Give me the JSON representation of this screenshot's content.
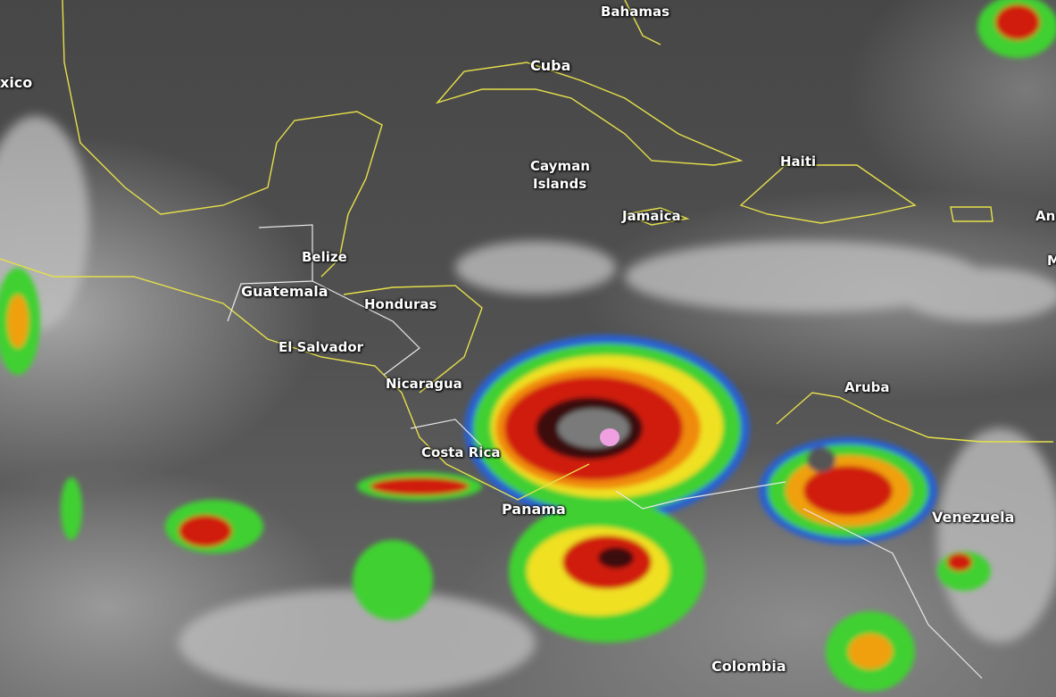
{
  "map": {
    "type": "infrared satellite imagery",
    "labels": {
      "mexico": "xico",
      "bahamas": "Bahamas",
      "cuba": "Cuba",
      "cayman_line1": "Cayman",
      "cayman_line2": "Islands",
      "haiti": "Haiti",
      "jamaica": "Jamaica",
      "antilles_cut": "An",
      "m_cut": "M",
      "belize": "Belize",
      "guatemala": "Guatemala",
      "honduras": "Honduras",
      "el_salvador": "El Salvador",
      "nicaragua": "Nicaragua",
      "costa_rica": "Costa Rica",
      "panama": "Panama",
      "aruba": "Aruba",
      "venezuela": "Venezuela",
      "colombia": "Colombia"
    },
    "colors": {
      "coastline": "#e6e04a",
      "border": "#e8e8e8",
      "cloud_cold_red": "#d01a10",
      "cloud_orange": "#f08a10",
      "cloud_yellow": "#f0e020",
      "cloud_green": "#40d030",
      "cloud_blue": "#2050d0",
      "cloud_peak_pink": "#f0a0e0"
    }
  }
}
